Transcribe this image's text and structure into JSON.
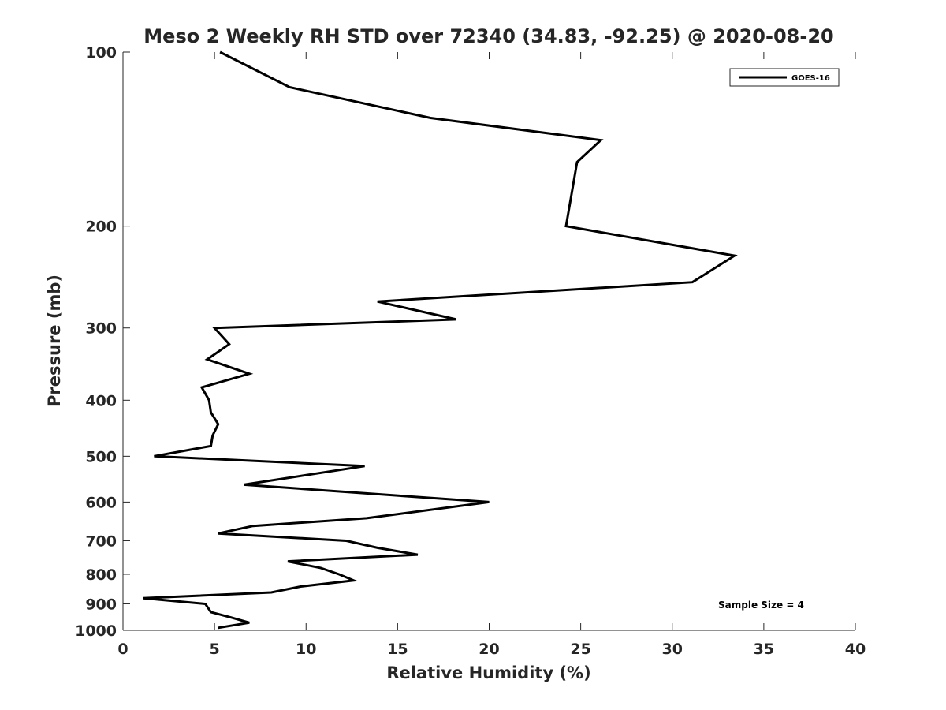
{
  "chart_data": {
    "type": "line",
    "title": "Meso 2 Weekly RH STD over 72340 (34.83, -92.25) @ 2020-08-20",
    "xlabel": "Relative Humidity (%)",
    "ylabel": "Pressure (mb)",
    "xlim": [
      0,
      40
    ],
    "ylim": [
      100,
      1000
    ],
    "y_scale": "log",
    "y_reversed": true,
    "grid": false,
    "legend_position": "top-right",
    "xticks": [
      0,
      5,
      10,
      15,
      20,
      25,
      30,
      35,
      40
    ],
    "yticks": [
      100,
      200,
      300,
      400,
      500,
      600,
      700,
      800,
      900,
      1000
    ],
    "annotation": "Sample Size = 4",
    "series": [
      {
        "name": "GOES-16",
        "color": "#000000",
        "points": [
          [
            5.3,
            100
          ],
          [
            9.1,
            115
          ],
          [
            16.8,
            130
          ],
          [
            26.1,
            142
          ],
          [
            24.8,
            155
          ],
          [
            24.2,
            200
          ],
          [
            33.4,
            225
          ],
          [
            31.1,
            250
          ],
          [
            13.9,
            270
          ],
          [
            18.2,
            290
          ],
          [
            5.0,
            300
          ],
          [
            5.8,
            320
          ],
          [
            4.6,
            340
          ],
          [
            6.9,
            360
          ],
          [
            4.3,
            380
          ],
          [
            4.7,
            400
          ],
          [
            4.8,
            420
          ],
          [
            5.2,
            440
          ],
          [
            4.9,
            460
          ],
          [
            4.8,
            480
          ],
          [
            1.7,
            500
          ],
          [
            13.2,
            520
          ],
          [
            6.6,
            560
          ],
          [
            20.0,
            600
          ],
          [
            13.3,
            640
          ],
          [
            7.1,
            660
          ],
          [
            5.2,
            680
          ],
          [
            12.2,
            700
          ],
          [
            13.9,
            720
          ],
          [
            16.1,
            740
          ],
          [
            9.0,
            760
          ],
          [
            10.8,
            780
          ],
          [
            11.8,
            800
          ],
          [
            12.6,
            820
          ],
          [
            9.7,
            840
          ],
          [
            8.1,
            860
          ],
          [
            1.1,
            880
          ],
          [
            4.5,
            900
          ],
          [
            4.8,
            930
          ],
          [
            5.9,
            950
          ],
          [
            6.9,
            970
          ],
          [
            5.2,
            990
          ]
        ]
      }
    ]
  }
}
